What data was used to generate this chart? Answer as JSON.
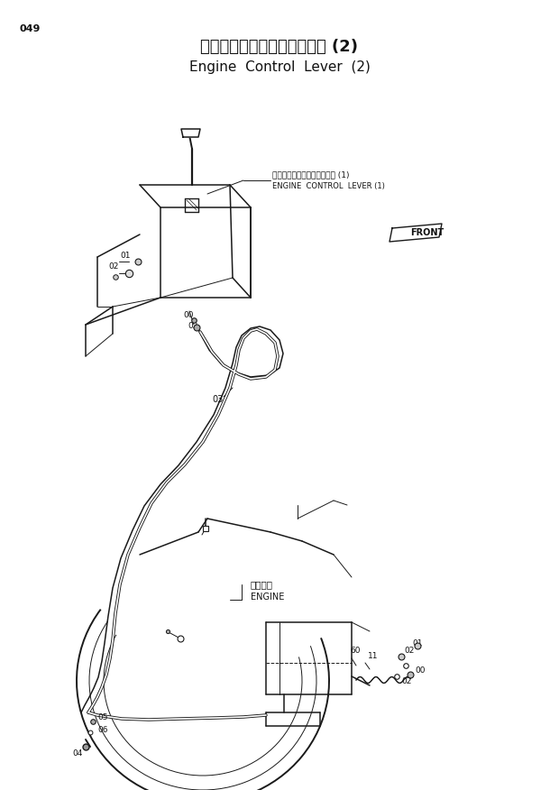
{
  "title_jp": "エンジンコントロールレバー (2)",
  "title_en": "Engine  Control  Lever  (2)",
  "page_num": "049",
  "bg_color": "#ffffff",
  "line_color": "#1a1a1a",
  "text_color": "#111111",
  "title_fontsize": 13,
  "subtitle_fontsize": 11,
  "label_fontsize": 6.5,
  "small_label_fontsize": 5.5,
  "lw_main": 1.1,
  "lw_thin": 0.7,
  "lw_cable": 1.5,
  "lever_label_jp": "エンジンコントロールレバー (1)",
  "lever_label_en": "ENGINE  CONTROL  LEVER (1)",
  "engine_label_jp": "エンジン",
  "engine_label_en": "ENGINE"
}
